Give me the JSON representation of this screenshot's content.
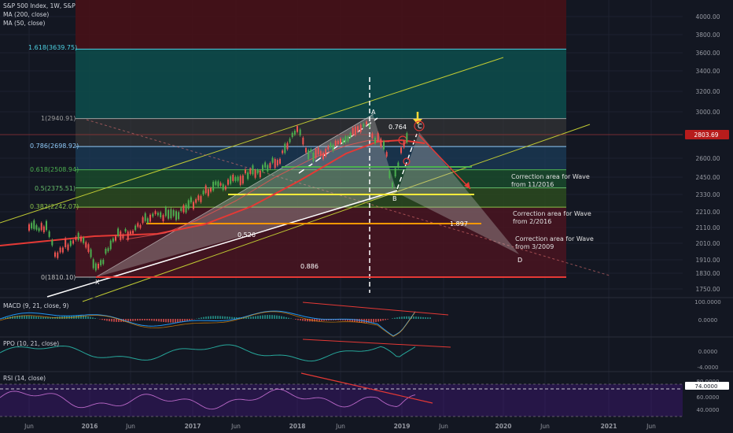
{
  "header": {
    "symbol": "S&P 500 Index, 1W, S&P",
    "ma200": "MA (200, close)",
    "ma50": "MA (50, close)"
  },
  "price_axis": {
    "ticks": [
      "4000.00",
      "3800.00",
      "3600.00",
      "3400.00",
      "3200.00",
      "3000.00",
      "2803.69",
      "2600.00",
      "2450.00",
      "2330.00",
      "2210.00",
      "2110.00",
      "2010.00",
      "1910.00",
      "1830.00",
      "1750.00"
    ],
    "last_price": "2803.69"
  },
  "time_axis": [
    "Jun",
    "2016",
    "Jun",
    "2017",
    "Jun",
    "2018",
    "Jun",
    "2019",
    "Jun",
    "2020",
    "Jun",
    "2021",
    "Jun"
  ],
  "fib_levels": [
    {
      "label": "1.618(3639.75)",
      "color": "#4dd0e1"
    },
    {
      "label": "1(2940.91)",
      "color": "#9e9e9e"
    },
    {
      "label": "0.786(2698.92)",
      "color": "#90caf9"
    },
    {
      "label": "0.618(2508.94)",
      "color": "#4caf50"
    },
    {
      "label": "0.5(2375.51)",
      "color": "#66bb6a"
    },
    {
      "label": "0.382(2242.07)",
      "color": "#8bc34a"
    },
    {
      "label": "0(1810.10)",
      "color": "#bdbdbd"
    }
  ],
  "pattern_points": {
    "x": "X",
    "a": "A",
    "b": "B",
    "c": "C",
    "d": "D"
  },
  "ratios": {
    "r1": "0.764",
    "r2": "0.526",
    "r3": "0.886",
    "r4": "1.897"
  },
  "annotations": {
    "a1_line1": "Correction area for Wave",
    "a1_line2": "from 11/2016",
    "a2_line1": "Correction area for Wave",
    "a2_line2": "from 2/2016",
    "a3_line1": "Correction area for Wave",
    "a3_line2": "from 3/2009"
  },
  "indicators": {
    "macd": {
      "label": "MACD (9, 21, close, 9)",
      "ticks": [
        "100.0000",
        "0.0000"
      ]
    },
    "ppo": {
      "label": "PPO (10, 21, close)",
      "ticks": [
        "0.0000",
        "-4.0000"
      ]
    },
    "rsi": {
      "label": "RSI (14, close)",
      "ticks": [
        "80.0000",
        "74.0000",
        "60.0000",
        "40.0000"
      ],
      "highlight": "74.0000"
    }
  },
  "colors": {
    "background": "#131722",
    "price_line": "#d1d4dc",
    "ma200": "#e53935",
    "ma50": "#ef5350",
    "up_candle": "#4caf50",
    "down_candle": "#ef5350",
    "grid": "#1e2230",
    "axis_text": "#9598a1",
    "last_price_bg": "#b71c1c"
  },
  "chart_data": {
    "type": "line",
    "title": "S&P 500 Index, 1W, S&P",
    "xlabel": "",
    "ylabel": "",
    "series": [
      {
        "name": "S&P 500 Index",
        "x": [
          "2015-06",
          "2015-08",
          "2015-09",
          "2015-12",
          "2016-02",
          "2016-04",
          "2016-06",
          "2016-08",
          "2016-11",
          "2017-01",
          "2017-03",
          "2017-05",
          "2017-07",
          "2017-09",
          "2017-11",
          "2018-01",
          "2018-02",
          "2018-04",
          "2018-06",
          "2018-08",
          "2018-09",
          "2018-10",
          "2018-11",
          "2018-12",
          "2019-01",
          "2019-02"
        ],
        "values": [
          2110,
          2100,
          1950,
          2060,
          1850,
          2060,
          2080,
          2180,
          2200,
          2280,
          2380,
          2400,
          2470,
          2510,
          2600,
          2860,
          2640,
          2650,
          2720,
          2850,
          2920,
          2750,
          2740,
          2390,
          2640,
          2790
        ]
      }
    ],
    "ylim": [
      1700,
      4050
    ]
  }
}
